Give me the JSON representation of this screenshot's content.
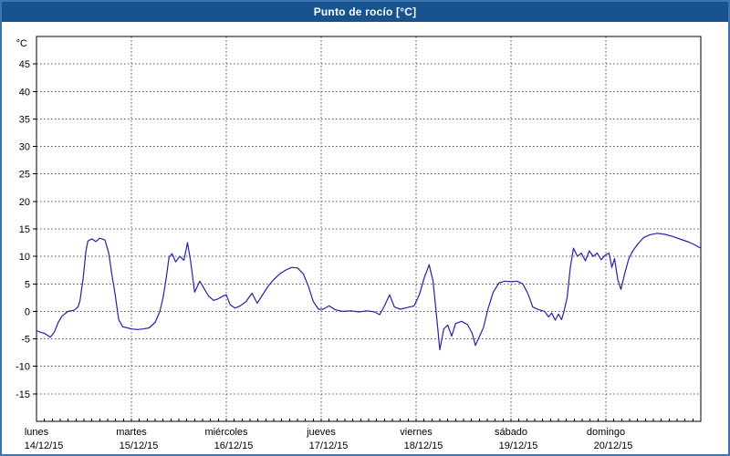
{
  "window": {
    "title": "Punto de rocío [°C]"
  },
  "colors": {
    "frame": "#3d74b2",
    "titlebar": "#17548f",
    "title_text": "#ffffff",
    "plot_border": "#000000",
    "grid": "#555555",
    "line": "#2222aa",
    "text": "#000000",
    "background": "#ffffff"
  },
  "chart_data": {
    "type": "line",
    "title": "Punto de rocío [°C]",
    "ylabel": "°C",
    "xlabel": "",
    "ylim": [
      -20,
      50
    ],
    "yticks": [
      -15,
      -10,
      -5,
      0,
      5,
      10,
      15,
      20,
      25,
      30,
      35,
      40,
      45
    ],
    "xlim": [
      0,
      168
    ],
    "x_unit": "hours",
    "grid": true,
    "legend": false,
    "categories": [
      {
        "name": "lunes",
        "date": "14/12/15"
      },
      {
        "name": "martes",
        "date": "15/12/15"
      },
      {
        "name": "miércoles",
        "date": "16/12/15"
      },
      {
        "name": "jueves",
        "date": "17/12/15"
      },
      {
        "name": "viernes",
        "date": "18/12/15"
      },
      {
        "name": "sábado",
        "date": "19/12/15"
      },
      {
        "name": "domingo",
        "date": "20/12/15"
      }
    ],
    "series": [
      {
        "name": "Punto de rocío",
        "color": "#2222aa",
        "points": [
          [
            0,
            -3.5
          ],
          [
            1,
            -3.8
          ],
          [
            2,
            -4
          ],
          [
            3.5,
            -4.7
          ],
          [
            4.5,
            -3.8
          ],
          [
            5.5,
            -2
          ],
          [
            6.5,
            -0.8
          ],
          [
            8,
            0
          ],
          [
            9.5,
            0.2
          ],
          [
            10.5,
            0.8
          ],
          [
            11,
            2
          ],
          [
            11.8,
            6
          ],
          [
            12.5,
            11
          ],
          [
            13,
            12.8
          ],
          [
            14,
            13.2
          ],
          [
            15,
            12.7
          ],
          [
            16,
            13.3
          ],
          [
            17.3,
            13
          ],
          [
            18.3,
            10.5
          ],
          [
            19,
            7
          ],
          [
            19.8,
            3.5
          ],
          [
            20.8,
            -1.5
          ],
          [
            21.8,
            -2.8
          ],
          [
            23,
            -3
          ],
          [
            24,
            -3.2
          ],
          [
            25.5,
            -3.3
          ],
          [
            27,
            -3.2
          ],
          [
            28.5,
            -3
          ],
          [
            30,
            -2
          ],
          [
            31.2,
            0
          ],
          [
            32,
            2.5
          ],
          [
            32.8,
            6
          ],
          [
            33.5,
            9.8
          ],
          [
            34.3,
            10.5
          ],
          [
            35.2,
            9
          ],
          [
            36.2,
            10
          ],
          [
            37.3,
            9.3
          ],
          [
            38.2,
            12.5
          ],
          [
            39,
            9
          ],
          [
            40,
            3.5
          ],
          [
            41.3,
            5.5
          ],
          [
            42.5,
            4
          ],
          [
            43.5,
            2.8
          ],
          [
            44.8,
            2
          ],
          [
            46,
            2.3
          ],
          [
            47.2,
            2.8
          ],
          [
            48,
            3
          ],
          [
            49,
            1.2
          ],
          [
            50.2,
            0.6
          ],
          [
            51.5,
            1
          ],
          [
            53,
            1.8
          ],
          [
            54.5,
            3.3
          ],
          [
            55.8,
            1.5
          ],
          [
            57,
            2.8
          ],
          [
            58.5,
            4.5
          ],
          [
            60,
            5.8
          ],
          [
            61.5,
            6.8
          ],
          [
            63,
            7.5
          ],
          [
            64.5,
            8
          ],
          [
            66,
            7.9
          ],
          [
            67.5,
            6.8
          ],
          [
            68.8,
            4.5
          ],
          [
            70,
            1.8
          ],
          [
            71.3,
            0.4
          ],
          [
            72.5,
            0.4
          ],
          [
            74,
            1
          ],
          [
            75.5,
            0.3
          ],
          [
            77.5,
            0
          ],
          [
            79.5,
            0.1
          ],
          [
            81.5,
            -0.1
          ],
          [
            83.5,
            0.1
          ],
          [
            85.5,
            -0.1
          ],
          [
            86.8,
            -0.6
          ],
          [
            88,
            1
          ],
          [
            89.3,
            3
          ],
          [
            90.5,
            0.8
          ],
          [
            92,
            0.4
          ],
          [
            93.8,
            0.7
          ],
          [
            95.5,
            1
          ],
          [
            96.8,
            3
          ],
          [
            98,
            6
          ],
          [
            99.3,
            8.5
          ],
          [
            100.3,
            5.5
          ],
          [
            101.2,
            -1
          ],
          [
            102,
            -7
          ],
          [
            103,
            -3.2
          ],
          [
            104,
            -2.5
          ],
          [
            105,
            -4.5
          ],
          [
            106,
            -2.2
          ],
          [
            107.5,
            -1.8
          ],
          [
            109,
            -2.4
          ],
          [
            110.2,
            -4
          ],
          [
            111,
            -6.2
          ],
          [
            112,
            -4.6
          ],
          [
            113,
            -3
          ],
          [
            114.2,
            0.5
          ],
          [
            115.5,
            3.5
          ],
          [
            117,
            5.2
          ],
          [
            118.5,
            5.5
          ],
          [
            120,
            5.4
          ],
          [
            121.5,
            5.5
          ],
          [
            123,
            5
          ],
          [
            124.3,
            3.2
          ],
          [
            125.5,
            0.8
          ],
          [
            127,
            0.3
          ],
          [
            128.5,
            0
          ],
          [
            129.5,
            -1
          ],
          [
            130.3,
            -0.3
          ],
          [
            131.2,
            -1.6
          ],
          [
            132,
            -0.5
          ],
          [
            132.8,
            -1.5
          ],
          [
            133.5,
            0.3
          ],
          [
            134.2,
            2.5
          ],
          [
            135,
            8
          ],
          [
            135.8,
            11.5
          ],
          [
            136.8,
            10
          ],
          [
            137.8,
            10.6
          ],
          [
            138.8,
            9.2
          ],
          [
            139.8,
            11
          ],
          [
            140.8,
            10
          ],
          [
            141.8,
            10.6
          ],
          [
            142.8,
            9.4
          ],
          [
            143.8,
            10.2
          ],
          [
            144.8,
            10.6
          ],
          [
            145.5,
            8
          ],
          [
            146.2,
            9.6
          ],
          [
            147,
            5.8
          ],
          [
            147.8,
            4
          ],
          [
            148.8,
            7
          ],
          [
            149.8,
            9.6
          ],
          [
            150.8,
            11
          ],
          [
            152,
            12.2
          ],
          [
            153.5,
            13.4
          ],
          [
            155,
            13.9
          ],
          [
            157,
            14.2
          ],
          [
            159,
            14
          ],
          [
            161,
            13.6
          ],
          [
            163,
            13.1
          ],
          [
            165,
            12.6
          ],
          [
            166.5,
            12.1
          ],
          [
            168,
            11.5
          ]
        ]
      }
    ]
  }
}
